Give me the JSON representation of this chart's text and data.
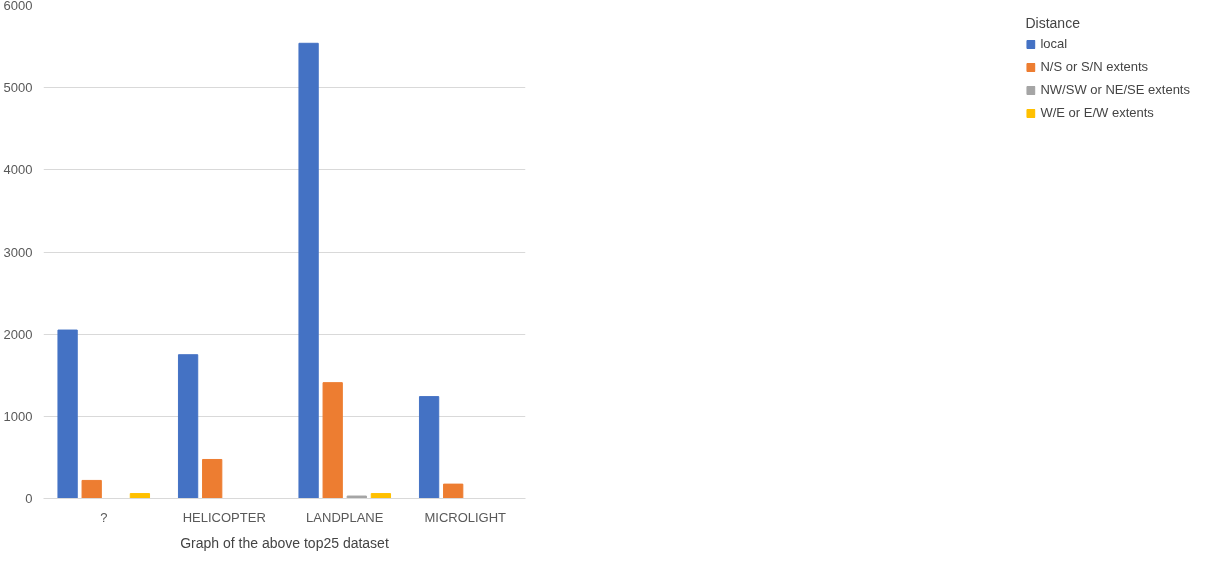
{
  "chart_data": {
    "type": "bar",
    "categories": [
      "?",
      "HELICOPTER",
      "LANDPLANE",
      "MICROLIGHT"
    ],
    "series": [
      {
        "name": "local",
        "color": "#4472c4",
        "values": [
          2050,
          1750,
          5540,
          1240
        ]
      },
      {
        "name": "N/S or S/N extents",
        "color": "#ed7d31",
        "values": [
          220,
          475,
          1410,
          175
        ]
      },
      {
        "name": "NW/SW or NE/SE extents",
        "color": "#a5a5a5",
        "values": [
          null,
          null,
          30,
          null
        ]
      },
      {
        "name": "W/E or E/W extents",
        "color": "#ffc000",
        "values": [
          60,
          null,
          60,
          null
        ]
      }
    ],
    "ylim": [
      0,
      6000
    ],
    "yticks": [
      0,
      1000,
      2000,
      3000,
      4000,
      5000,
      6000
    ],
    "grid": "y",
    "legend": "right",
    "legend_title": "Distance",
    "annotations": [
      "Graph of the above top25 dataset"
    ]
  }
}
